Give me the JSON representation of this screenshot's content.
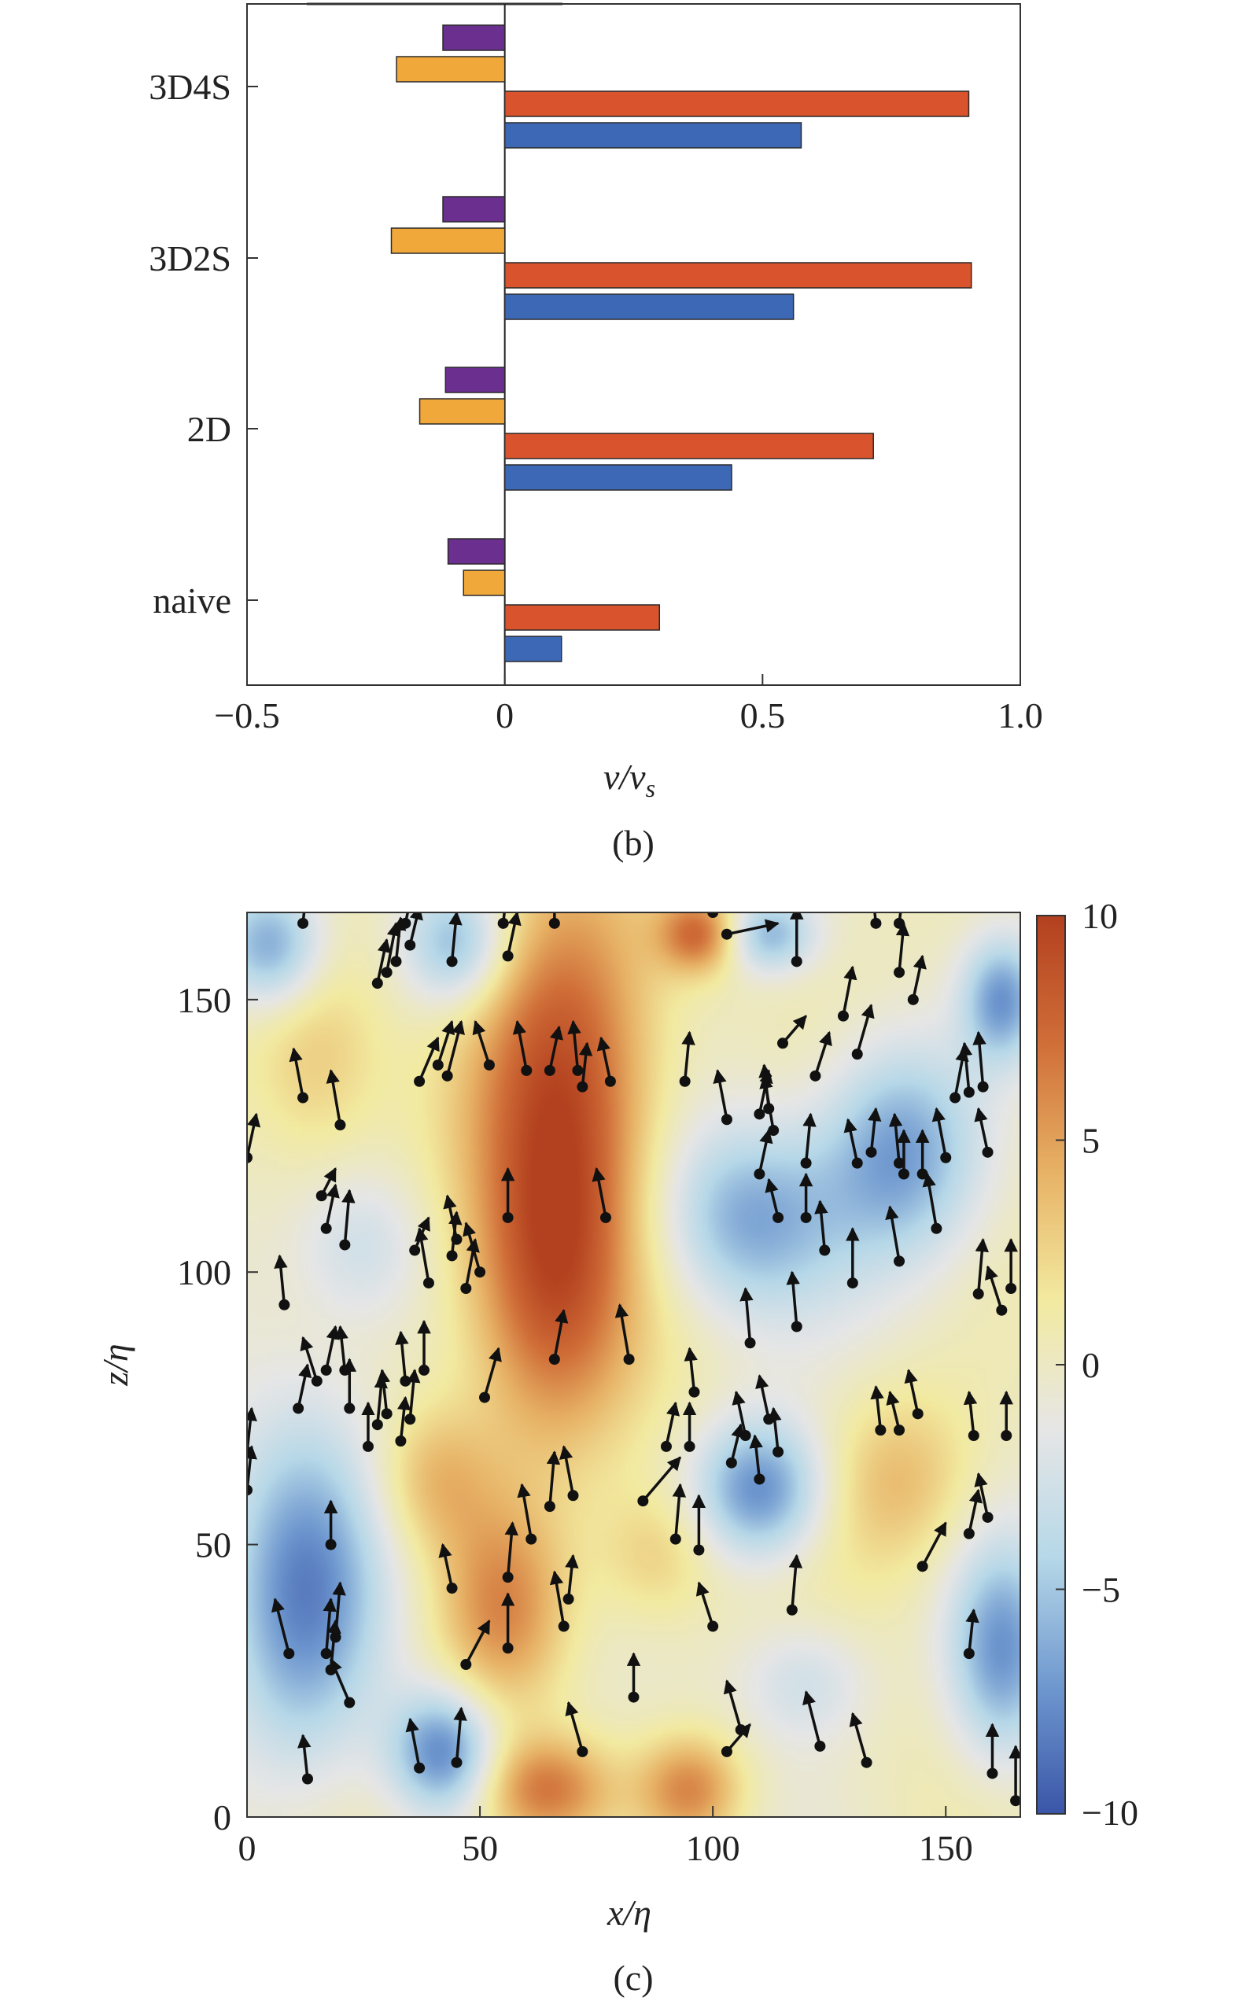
{
  "chart_data": [
    {
      "type": "bar",
      "orientation": "horizontal",
      "panel_label": "(b)",
      "xlabel": "v/v",
      "xlabel_subscript": "s",
      "xlim": [
        -0.5,
        1.0
      ],
      "x_ticks": [
        -0.5,
        0,
        0.5,
        1.0
      ],
      "x_tick_labels": [
        "−0.5",
        "0",
        "0.5",
        "1.0"
      ],
      "categories": [
        "3D4S",
        "3D2S",
        "2D",
        "naive"
      ],
      "series": [
        {
          "color": "#6b2f8f",
          "values": [
            -0.12,
            -0.12,
            -0.115,
            -0.11
          ]
        },
        {
          "color": "#f0a83a",
          "values": [
            -0.21,
            -0.22,
            -0.165,
            -0.08
          ]
        },
        {
          "color": "#d9532c",
          "values": [
            0.9,
            0.905,
            0.715,
            0.3
          ]
        },
        {
          "color": "#3d68b5",
          "values": [
            0.575,
            0.56,
            0.44,
            0.11
          ]
        }
      ],
      "grid": false,
      "legend": "none"
    },
    {
      "type": "heatmap",
      "panel_label": "(c)",
      "xlabel": "x/η",
      "ylabel": "z/η",
      "xlim": [
        0,
        166
      ],
      "ylim": [
        0,
        166
      ],
      "x_ticks": [
        0,
        50,
        100,
        150
      ],
      "x_tick_labels": [
        "0",
        "50",
        "100",
        "150"
      ],
      "y_ticks": [
        0,
        50,
        100,
        150
      ],
      "y_tick_labels": [
        "0",
        "50",
        "100",
        "150"
      ],
      "colorbar": {
        "range": [
          -10,
          10
        ],
        "ticks": [
          10,
          5,
          0,
          -5,
          -10
        ],
        "tick_labels": [
          "10",
          "5",
          "0",
          "−5",
          "−10"
        ]
      },
      "colormap": [
        "#3a55a8",
        "#6f98cf",
        "#b6d8e8",
        "#e6e6e6",
        "#f2eaa0",
        "#e7b266",
        "#d06e38",
        "#b3401f"
      ],
      "field_blobs": [
        {
          "x": 68,
          "z": 135,
          "sx": 14,
          "sz": 28,
          "a": 9
        },
        {
          "x": 65,
          "z": 95,
          "sx": 12,
          "sz": 20,
          "a": 6
        },
        {
          "x": 55,
          "z": 38,
          "sx": 10,
          "sz": 14,
          "a": 6
        },
        {
          "x": 40,
          "z": 62,
          "sx": 9,
          "sz": 10,
          "a": 4
        },
        {
          "x": 64,
          "z": 5,
          "sx": 10,
          "sz": 7,
          "a": 7
        },
        {
          "x": 95,
          "z": 5,
          "sx": 8,
          "sz": 7,
          "a": 6
        },
        {
          "x": 97,
          "z": 162,
          "sx": 6,
          "sz": 5,
          "a": 7
        },
        {
          "x": 15,
          "z": 140,
          "sx": 10,
          "sz": 14,
          "a": 3
        },
        {
          "x": 140,
          "z": 62,
          "sx": 12,
          "sz": 12,
          "a": 4
        },
        {
          "x": 88,
          "z": 48,
          "sx": 9,
          "sz": 9,
          "a": 3
        },
        {
          "x": 110,
          "z": 60,
          "sx": 10,
          "sz": 9,
          "a": -8
        },
        {
          "x": 108,
          "z": 110,
          "sx": 14,
          "sz": 12,
          "a": -6
        },
        {
          "x": 140,
          "z": 122,
          "sx": 12,
          "sz": 14,
          "a": -7
        },
        {
          "x": 12,
          "z": 40,
          "sx": 12,
          "sz": 22,
          "a": -8
        },
        {
          "x": 42,
          "z": 12,
          "sx": 8,
          "sz": 8,
          "a": -8
        },
        {
          "x": 5,
          "z": 160,
          "sx": 8,
          "sz": 8,
          "a": -7
        },
        {
          "x": 45,
          "z": 160,
          "sx": 8,
          "sz": 8,
          "a": -6
        },
        {
          "x": 112,
          "z": 162,
          "sx": 7,
          "sz": 5,
          "a": -6
        },
        {
          "x": 162,
          "z": 30,
          "sx": 8,
          "sz": 14,
          "a": -7
        },
        {
          "x": 25,
          "z": 105,
          "sx": 10,
          "sz": 10,
          "a": -3
        },
        {
          "x": 120,
          "z": 25,
          "sx": 10,
          "sz": 8,
          "a": -3
        },
        {
          "x": 162,
          "z": 150,
          "sx": 6,
          "sz": 8,
          "a": -7
        }
      ],
      "particles": [
        [
          12,
          164,
          1,
          8
        ],
        [
          34,
          164,
          2,
          8
        ],
        [
          55,
          164,
          1,
          8
        ],
        [
          66,
          164,
          0,
          8
        ],
        [
          100,
          166,
          0,
          7
        ],
        [
          103,
          162,
          11,
          2
        ],
        [
          135,
          164,
          -1,
          8
        ],
        [
          140,
          164,
          1,
          7
        ],
        [
          28,
          153,
          2,
          8
        ],
        [
          30,
          155,
          2,
          9
        ],
        [
          32,
          157,
          1,
          8
        ],
        [
          35,
          160,
          2,
          7
        ],
        [
          44,
          157,
          1,
          9
        ],
        [
          56,
          158,
          2,
          8
        ],
        [
          118,
          157,
          0,
          10
        ],
        [
          128,
          147,
          2,
          9
        ],
        [
          140,
          155,
          1,
          9
        ],
        [
          37,
          135,
          4,
          8
        ],
        [
          41,
          138,
          3,
          8
        ],
        [
          43,
          136,
          3,
          10
        ],
        [
          52,
          138,
          -3,
          8
        ],
        [
          60,
          137,
          -2,
          9
        ],
        [
          65,
          137,
          2,
          8
        ],
        [
          72,
          134,
          1,
          8
        ],
        [
          71,
          137,
          -1,
          9
        ],
        [
          78,
          135,
          -2,
          8
        ],
        [
          115,
          142,
          5,
          5
        ],
        [
          122,
          136,
          3,
          8
        ],
        [
          131,
          140,
          3,
          9
        ],
        [
          143,
          150,
          2,
          8
        ],
        [
          152,
          132,
          2,
          9
        ],
        [
          155,
          133,
          -1,
          9
        ],
        [
          158,
          134,
          -1,
          10
        ],
        [
          12,
          132,
          -2,
          9
        ],
        [
          20,
          127,
          -2,
          10
        ],
        [
          94,
          135,
          1,
          9
        ],
        [
          103,
          128,
          -2,
          9
        ],
        [
          110,
          129,
          2,
          8
        ],
        [
          112,
          130,
          -1,
          8
        ],
        [
          113,
          126,
          -2,
          10
        ],
        [
          0,
          121,
          2,
          8
        ],
        [
          56,
          110,
          0,
          9
        ],
        [
          77,
          110,
          -2,
          9
        ],
        [
          110,
          118,
          2,
          8
        ],
        [
          120,
          120,
          1,
          9
        ],
        [
          131,
          120,
          -2,
          8
        ],
        [
          134,
          122,
          1,
          8
        ],
        [
          140,
          120,
          -1,
          9
        ],
        [
          141,
          118,
          0,
          8
        ],
        [
          145,
          118,
          0,
          8
        ],
        [
          150,
          121,
          -2,
          9
        ],
        [
          159,
          122,
          -2,
          8
        ],
        [
          16,
          114,
          3,
          5
        ],
        [
          17,
          108,
          2,
          8
        ],
        [
          21,
          105,
          1,
          10
        ],
        [
          36,
          104,
          3,
          6
        ],
        [
          44,
          103,
          1,
          8
        ],
        [
          45,
          106,
          -2,
          8
        ],
        [
          39,
          98,
          -2,
          10
        ],
        [
          47,
          97,
          2,
          9
        ],
        [
          50,
          100,
          -3,
          9
        ],
        [
          114,
          110,
          -2,
          7
        ],
        [
          120,
          110,
          0,
          8
        ],
        [
          124,
          104,
          -1,
          9
        ],
        [
          130,
          98,
          0,
          10
        ],
        [
          140,
          102,
          -2,
          10
        ],
        [
          148,
          108,
          -2,
          10
        ],
        [
          157,
          96,
          1,
          10
        ],
        [
          162,
          93,
          -3,
          8
        ],
        [
          164,
          97,
          0,
          9
        ],
        [
          8,
          94,
          -1,
          9
        ],
        [
          15,
          80,
          -3,
          8
        ],
        [
          17,
          82,
          2,
          8
        ],
        [
          21,
          82,
          -1,
          8
        ],
        [
          22,
          75,
          0,
          9
        ],
        [
          28,
          72,
          1,
          9
        ],
        [
          30,
          74,
          -1,
          8
        ],
        [
          35,
          73,
          1,
          9
        ],
        [
          34,
          80,
          -1,
          9
        ],
        [
          38,
          82,
          0,
          9
        ],
        [
          51,
          77,
          3,
          9
        ],
        [
          66,
          84,
          2,
          9
        ],
        [
          82,
          84,
          -2,
          10
        ],
        [
          96,
          78,
          -1,
          8
        ],
        [
          108,
          87,
          -1,
          10
        ],
        [
          118,
          90,
          -1,
          10
        ],
        [
          11,
          75,
          2,
          8
        ],
        [
          0,
          67,
          1,
          8
        ],
        [
          26,
          68,
          0,
          8
        ],
        [
          33,
          69,
          1,
          8
        ],
        [
          90,
          68,
          2,
          8
        ],
        [
          95,
          68,
          0,
          8
        ],
        [
          104,
          65,
          2,
          7
        ],
        [
          107,
          70,
          -2,
          8
        ],
        [
          112,
          73,
          -2,
          8
        ],
        [
          110,
          62,
          -1,
          8
        ],
        [
          114,
          67,
          -1,
          8
        ],
        [
          136,
          71,
          -1,
          8
        ],
        [
          140,
          71,
          -2,
          7
        ],
        [
          144,
          74,
          -2,
          8
        ],
        [
          156,
          70,
          -1,
          8
        ],
        [
          163,
          70,
          0,
          8
        ],
        [
          0,
          60,
          1,
          8
        ],
        [
          18,
          50,
          0,
          8
        ],
        [
          44,
          42,
          -2,
          8
        ],
        [
          56,
          44,
          1,
          10
        ],
        [
          61,
          51,
          -2,
          10
        ],
        [
          65,
          57,
          1,
          10
        ],
        [
          70,
          59,
          -2,
          9
        ],
        [
          85,
          58,
          8,
          8
        ],
        [
          92,
          51,
          1,
          10
        ],
        [
          97,
          49,
          0,
          10
        ],
        [
          117,
          38,
          1,
          10
        ],
        [
          145,
          46,
          5,
          8
        ],
        [
          155,
          52,
          2,
          8
        ],
        [
          159,
          55,
          -2,
          8
        ],
        [
          9,
          30,
          -3,
          10
        ],
        [
          17,
          30,
          1,
          10
        ],
        [
          19,
          33,
          1,
          10
        ],
        [
          18,
          27,
          1,
          9
        ],
        [
          22,
          21,
          -4,
          8
        ],
        [
          47,
          28,
          5,
          8
        ],
        [
          56,
          31,
          0,
          10
        ],
        [
          68,
          35,
          -2,
          10
        ],
        [
          69,
          40,
          1,
          8
        ],
        [
          83,
          22,
          0,
          8
        ],
        [
          106,
          16,
          -3,
          9
        ],
        [
          100,
          35,
          -3,
          8
        ],
        [
          103,
          12,
          5,
          5
        ],
        [
          123,
          13,
          -3,
          10
        ],
        [
          13,
          7,
          -1,
          8
        ],
        [
          37,
          9,
          -2,
          9
        ],
        [
          45,
          10,
          1,
          10
        ],
        [
          72,
          12,
          -3,
          9
        ],
        [
          133,
          10,
          -3,
          9
        ],
        [
          155,
          30,
          1,
          8
        ],
        [
          160,
          8,
          0,
          9
        ],
        [
          165,
          3,
          0,
          10
        ]
      ]
    }
  ]
}
